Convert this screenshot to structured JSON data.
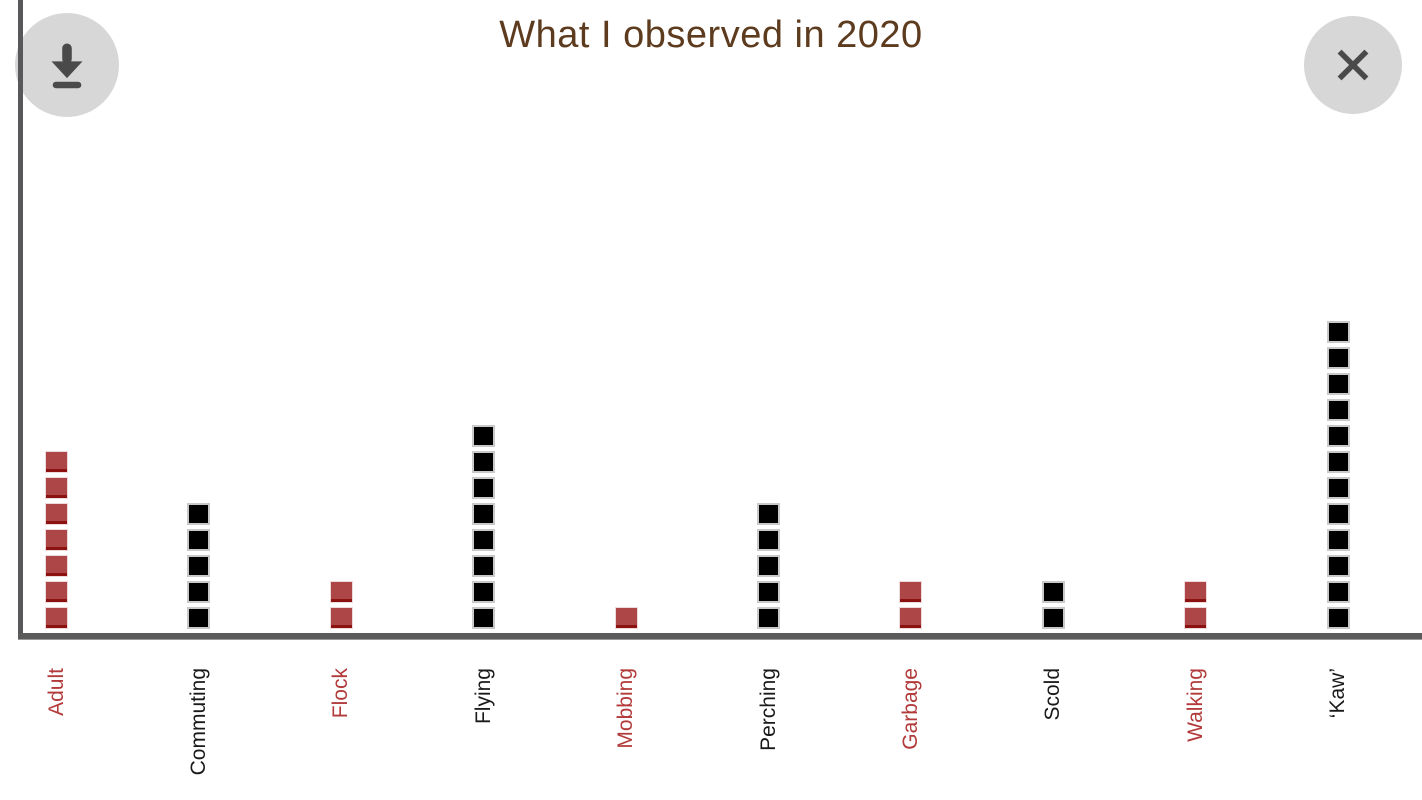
{
  "window": {
    "background": "#ffffff"
  },
  "toolbar": {
    "download_button": {
      "icon": "download-icon",
      "circle_color": "#d7d7d7",
      "glyph_color": "#4a4a4a"
    },
    "close_button": {
      "icon": "close-icon",
      "circle_color": "#d7d7d7",
      "glyph_color": "#4a4a4a"
    }
  },
  "chart_data": {
    "type": "bar",
    "variant": "unit-square-pictograph",
    "title": "What I observed in 2020",
    "title_color": "#5d3b1e",
    "orientation": "vertical",
    "unit_value": 1,
    "categories": [
      "Adult",
      "Commuting",
      "Flock",
      "Flying",
      "Mobbing",
      "Perching",
      "Garbage",
      "Scold",
      "Walking",
      "‘Kaw’"
    ],
    "values": [
      7,
      5,
      2,
      8,
      1,
      5,
      2,
      2,
      2,
      12
    ],
    "square_colors": [
      "#ad4646",
      "#000000",
      "#ad4646",
      "#000000",
      "#ad4646",
      "#000000",
      "#ad4646",
      "#000000",
      "#ad4646",
      "#000000"
    ],
    "label_colors": [
      "#b23a3a",
      "#1a1a1a",
      "#b23a3a",
      "#1a1a1a",
      "#b23a3a",
      "#1a1a1a",
      "#b23a3a",
      "#1a1a1a",
      "#b23a3a",
      "#1a1a1a"
    ],
    "xlabel": "",
    "ylabel": "",
    "ylim": [
      0,
      12
    ],
    "grid": false,
    "legend": null,
    "axis_color": "#58585a",
    "x_tick_label_rotation_deg": 90
  }
}
